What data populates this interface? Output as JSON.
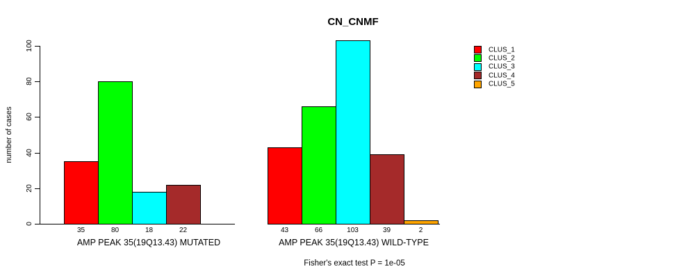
{
  "chart_data": {
    "type": "bar",
    "title": "CN_CNMF",
    "ylabel": "number of cases",
    "xlabel": "",
    "ylim": [
      0,
      100
    ],
    "yticks": [
      0,
      20,
      40,
      60,
      80,
      100
    ],
    "grid": false,
    "legend_position": "right-outside",
    "categories": [
      "AMP PEAK 35(19Q13.43) MUTATED",
      "AMP PEAK 35(19Q13.43) WILD-TYPE"
    ],
    "series": [
      {
        "name": "CLUS_1",
        "color": "#FF0000",
        "values": [
          35,
          43
        ]
      },
      {
        "name": "CLUS_2",
        "color": "#00FF00",
        "values": [
          80,
          66
        ]
      },
      {
        "name": "CLUS_3",
        "color": "#00FFFF",
        "values": [
          18,
          103
        ]
      },
      {
        "name": "CLUS_4",
        "color": "#A52A2A",
        "values": [
          22,
          39
        ]
      },
      {
        "name": "CLUS_5",
        "color": "#FFA500",
        "values": [
          0,
          2
        ]
      }
    ],
    "bar_value_labels": [
      [
        "35",
        "80",
        "18",
        "22"
      ],
      [
        "43",
        "66",
        "103",
        "39",
        "2"
      ]
    ],
    "annotation": "Fisher's exact test P = 1e-05"
  },
  "colors": {
    "axis": "#000000",
    "background": "#FFFFFF",
    "text": "#000000"
  }
}
